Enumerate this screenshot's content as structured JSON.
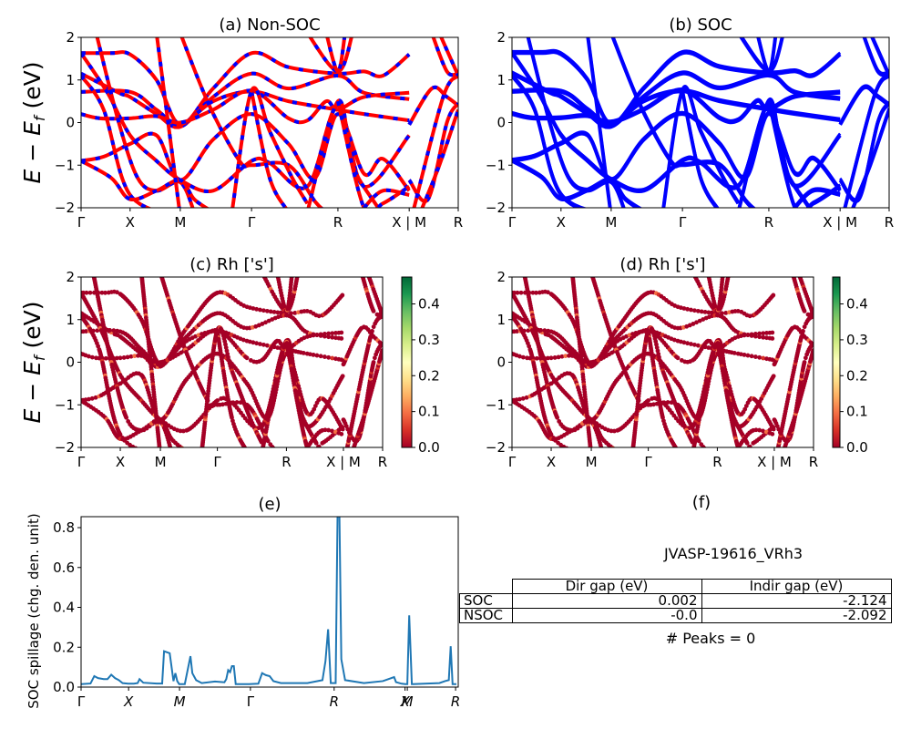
{
  "chart_data": [
    {
      "id": "a",
      "type": "line",
      "title": "(a) Non-SOC",
      "ylabel": "E − E_f (eV)",
      "xlabel": "",
      "ylim": [
        -2,
        2
      ],
      "yticks": [
        "−2",
        "−1",
        "0",
        "1",
        "2"
      ],
      "ytick_values": [
        -2,
        -1,
        0,
        1,
        2
      ],
      "kpath_labels": [
        "Γ",
        "X",
        "M",
        "Γ",
        "R",
        "X | M",
        "R"
      ],
      "kpath_positions": [
        0,
        0.13,
        0.263,
        0.452,
        0.681,
        0.87,
        1.0
      ],
      "style": "red solid with blue dashed overlay",
      "colors": {
        "line": "#ff0000",
        "dash": "#0000ff"
      }
    },
    {
      "id": "b",
      "type": "line",
      "title": "(b) SOC",
      "ylabel": "",
      "ylim": [
        -2,
        2
      ],
      "yticks": [
        "−2",
        "−1",
        "0",
        "1",
        "2"
      ],
      "ytick_values": [
        -2,
        -1,
        0,
        1,
        2
      ],
      "kpath_labels": [
        "Γ",
        "X",
        "M",
        "Γ",
        "R",
        "X | M",
        "R"
      ],
      "kpath_positions": [
        0,
        0.13,
        0.263,
        0.452,
        0.681,
        0.87,
        1.0
      ],
      "colors": {
        "line": "#0000ff"
      }
    },
    {
      "id": "c",
      "type": "scatter",
      "title": "(c)  Rh ['s']",
      "ylabel": "E − E_f (eV)",
      "ylim": [
        -2,
        2
      ],
      "yticks": [
        "−2",
        "−1",
        "0",
        "1",
        "2"
      ],
      "ytick_values": [
        -2,
        -1,
        0,
        1,
        2
      ],
      "kpath_labels": [
        "Γ",
        "X",
        "M",
        "Γ",
        "R",
        "X | M",
        "R"
      ],
      "kpath_positions": [
        0,
        0.13,
        0.263,
        0.452,
        0.681,
        0.87,
        1.0
      ],
      "colorbar": {
        "colormap": "RdYlGn",
        "range": [
          0,
          0.475
        ],
        "ticks": [
          "0.0",
          "0.1",
          "0.2",
          "0.3",
          "0.4"
        ],
        "tick_values": [
          0,
          0.1,
          0.2,
          0.3,
          0.4
        ]
      }
    },
    {
      "id": "d",
      "type": "scatter",
      "title": "(d) Rh ['s']",
      "ylabel": "",
      "ylim": [
        -2,
        2
      ],
      "yticks": [
        "−2",
        "−1",
        "0",
        "1",
        "2"
      ],
      "ytick_values": [
        -2,
        -1,
        0,
        1,
        2
      ],
      "kpath_labels": [
        "Γ",
        "X",
        "M",
        "Γ",
        "R",
        "X | M",
        "R"
      ],
      "kpath_positions": [
        0,
        0.13,
        0.263,
        0.452,
        0.681,
        0.87,
        1.0
      ],
      "colorbar": {
        "colormap": "RdYlGn",
        "range": [
          0,
          0.475
        ],
        "ticks": [
          "0.0",
          "0.1",
          "0.2",
          "0.3",
          "0.4"
        ],
        "tick_values": [
          0,
          0.1,
          0.2,
          0.3,
          0.4
        ]
      }
    },
    {
      "id": "e",
      "type": "line",
      "title": "(e)",
      "ylabel": "SOC spillage (chg. den. unit)",
      "ylim": [
        0,
        0.855
      ],
      "yticks": [
        "0.0",
        "0.2",
        "0.4",
        "0.6",
        "0.8"
      ],
      "ytick_values": [
        0,
        0.2,
        0.4,
        0.6,
        0.8
      ],
      "kpath_labels": [
        "Γ",
        "X",
        "M",
        "Γ",
        "R",
        "X",
        "M",
        "R"
      ],
      "kpath_positions": [
        0,
        0.126,
        0.261,
        0.449,
        0.671,
        0.859,
        0.865,
        0.993
      ],
      "color": "#1f77b4",
      "x": [
        0,
        0.025,
        0.035,
        0.045,
        0.06,
        0.07,
        0.08,
        0.09,
        0.1,
        0.11,
        0.125,
        0.14,
        0.15,
        0.155,
        0.165,
        0.2,
        0.215,
        0.22,
        0.235,
        0.245,
        0.25,
        0.255,
        0.26,
        0.27,
        0.275,
        0.29,
        0.295,
        0.305,
        0.32,
        0.355,
        0.38,
        0.385,
        0.39,
        0.395,
        0.4,
        0.405,
        0.41,
        0.415,
        0.42,
        0.425,
        0.445,
        0.47,
        0.48,
        0.49,
        0.5,
        0.51,
        0.53,
        0.6,
        0.64,
        0.648,
        0.655,
        0.662,
        0.668,
        0.675,
        0.68,
        0.685,
        0.69,
        0.7,
        0.75,
        0.8,
        0.83,
        0.835,
        0.85,
        0.86,
        0.865,
        0.87,
        0.877,
        0.88,
        0.95,
        0.965,
        0.975,
        0.98,
        0.985,
        0.995
      ],
      "values": [
        0.015,
        0.018,
        0.055,
        0.045,
        0.04,
        0.04,
        0.062,
        0.045,
        0.035,
        0.02,
        0.017,
        0.017,
        0.02,
        0.04,
        0.022,
        0.018,
        0.018,
        0.18,
        0.17,
        0.03,
        0.07,
        0.03,
        0.015,
        0.015,
        0.015,
        0.155,
        0.07,
        0.035,
        0.02,
        0.028,
        0.024,
        0.04,
        0.085,
        0.075,
        0.105,
        0.105,
        0.015,
        0.015,
        0.015,
        0.015,
        0.015,
        0.017,
        0.07,
        0.06,
        0.055,
        0.03,
        0.02,
        0.02,
        0.035,
        0.13,
        0.29,
        0.02,
        0.02,
        0.02,
        0.86,
        0.86,
        0.14,
        0.035,
        0.02,
        0.03,
        0.05,
        0.025,
        0.017,
        0.015,
        0.015,
        0.36,
        0.015,
        0.015,
        0.02,
        0.03,
        0.035,
        0.205,
        0.015,
        0.015
      ]
    }
  ],
  "panel_f": {
    "title": "(f)",
    "material": "JVASP-19616_VRh3",
    "table": {
      "headers": [
        "",
        "Dir gap (eV)",
        "Indir gap (eV)"
      ],
      "rows": [
        {
          "label": "SOC",
          "dir_gap": "0.002",
          "indir_gap": "-2.124"
        },
        {
          "label": "NSOC",
          "dir_gap": "-0.0",
          "indir_gap": "-2.092"
        }
      ]
    },
    "peaks_text": "# Peaks = 0"
  },
  "bands": [
    [
      [
        0,
        1.63
      ],
      [
        0.08,
        1.63
      ],
      [
        0.13,
        1.6
      ],
      [
        0.2,
        1.0
      ],
      [
        0.263,
        -0.05
      ],
      [
        0.35,
        0.8
      ],
      [
        0.452,
        1.63
      ],
      [
        0.55,
        1.3
      ],
      [
        0.681,
        1.15
      ],
      [
        0.75,
        1.2
      ],
      [
        0.8,
        1.1
      ],
      [
        0.87,
        1.6
      ]
    ],
    [
      [
        0,
        1.15
      ],
      [
        0.1,
        0.7
      ],
      [
        0.13,
        0.6
      ],
      [
        0.2,
        0.2
      ],
      [
        0.263,
        -0.1
      ],
      [
        0.35,
        0.6
      ],
      [
        0.452,
        1.15
      ],
      [
        0.55,
        0.8
      ],
      [
        0.681,
        1.1
      ],
      [
        0.75,
        0.7
      ],
      [
        0.87,
        0.55
      ]
    ],
    [
      [
        0,
        0.72
      ],
      [
        0.13,
        0.72
      ],
      [
        0.2,
        0.3
      ],
      [
        0.263,
        -0.05
      ],
      [
        0.35,
        0.5
      ],
      [
        0.452,
        0.73
      ],
      [
        0.55,
        0.5
      ],
      [
        0.681,
        0.3
      ],
      [
        0.75,
        0.2
      ],
      [
        0.87,
        0.05
      ]
    ],
    [
      [
        0,
        0.2
      ],
      [
        0.05,
        0.1
      ],
      [
        0.13,
        0.1
      ],
      [
        0.2,
        0.15
      ],
      [
        0.263,
        0.0
      ],
      [
        0.35,
        0.3
      ],
      [
        0.452,
        0.75
      ],
      [
        0.55,
        0.1
      ],
      [
        0.6,
        0.05
      ],
      [
        0.65,
        0.5
      ],
      [
        0.681,
        0.3
      ],
      [
        0.75,
        0.6
      ],
      [
        0.87,
        0.7
      ]
    ],
    [
      [
        0,
        -0.9
      ],
      [
        0.06,
        -0.8
      ],
      [
        0.13,
        -0.5
      ],
      [
        0.2,
        -0.3
      ],
      [
        0.263,
        -1.35
      ],
      [
        0.35,
        -0.4
      ],
      [
        0.452,
        0.2
      ],
      [
        0.55,
        -0.5
      ],
      [
        0.62,
        -1.3
      ],
      [
        0.681,
        0.2
      ],
      [
        0.75,
        -1.2
      ],
      [
        0.8,
        -0.85
      ],
      [
        0.87,
        -1.6
      ]
    ],
    [
      [
        0,
        1.63
      ],
      [
        0.07,
        0.7
      ],
      [
        0.13,
        -0.3
      ],
      [
        0.2,
        -0.9
      ],
      [
        0.263,
        -1.35
      ],
      [
        0.35,
        -1.6
      ],
      [
        0.452,
        -0.9
      ],
      [
        0.5,
        -0.95
      ],
      [
        0.6,
        -1.5
      ],
      [
        0.681,
        0.4
      ],
      [
        0.75,
        -1.5
      ],
      [
        0.87,
        -0.3
      ]
    ],
    [
      [
        0,
        1.1
      ],
      [
        0.06,
        0.3
      ],
      [
        0.13,
        -1.7
      ],
      [
        0.263,
        -2.2
      ]
    ],
    [
      [
        0.04,
        2.1
      ],
      [
        0.1,
        0.0
      ],
      [
        0.15,
        -1.3
      ],
      [
        0.2,
        -1.6
      ],
      [
        0.263,
        -1.4
      ],
      [
        0.3,
        -2.1
      ]
    ],
    [
      [
        0,
        -0.9
      ],
      [
        0.08,
        -1.3
      ],
      [
        0.13,
        -1.8
      ],
      [
        0.2,
        -1.6
      ],
      [
        0.263,
        -1.35
      ],
      [
        0.3,
        -1.8
      ],
      [
        0.35,
        -2.1
      ]
    ],
    [
      [
        0.2,
        2.1
      ],
      [
        0.263,
        -2.2
      ]
    ],
    [
      [
        0.263,
        2.1
      ],
      [
        0.34,
        0.4
      ],
      [
        0.42,
        -0.9
      ],
      [
        0.452,
        -1.0
      ],
      [
        0.55,
        -1.0
      ],
      [
        0.62,
        -1.85
      ],
      [
        0.65,
        -2.1
      ]
    ],
    [
      [
        0.452,
        0.73
      ],
      [
        0.5,
        -1.3
      ],
      [
        0.55,
        -2.1
      ]
    ],
    [
      [
        0.4,
        -2.1
      ],
      [
        0.452,
        0.75
      ],
      [
        0.5,
        -0.2
      ],
      [
        0.56,
        -1.3
      ],
      [
        0.6,
        -1.9
      ]
    ],
    [
      [
        0.6,
        2.1
      ],
      [
        0.681,
        1.2
      ],
      [
        0.72,
        2.1
      ]
    ],
    [
      [
        0.65,
        2.1
      ],
      [
        0.681,
        1.2
      ],
      [
        0.7,
        2.1
      ]
    ],
    [
      [
        0.6,
        -2.1
      ],
      [
        0.681,
        0.5
      ],
      [
        0.72,
        -1.0
      ],
      [
        0.78,
        -1.9
      ],
      [
        0.8,
        -2.1
      ]
    ],
    [
      [
        0.681,
        0.5
      ],
      [
        0.75,
        -2.0
      ],
      [
        0.8,
        -1.9
      ],
      [
        0.87,
        -1.5
      ]
    ],
    [
      [
        0.75,
        -2.0
      ],
      [
        0.8,
        -1.6
      ],
      [
        0.87,
        -1.7
      ]
    ],
    [
      [
        0.87,
        -0.05
      ],
      [
        0.93,
        0.8
      ],
      [
        0.97,
        0.6
      ],
      [
        1.0,
        0.4
      ]
    ],
    [
      [
        0.87,
        -1.35
      ],
      [
        0.92,
        -1.8
      ],
      [
        0.97,
        0.0
      ],
      [
        1.0,
        0.45
      ]
    ],
    [
      [
        0.88,
        -2.1
      ],
      [
        0.96,
        0.6
      ],
      [
        1.0,
        1.1
      ]
    ],
    [
      [
        0.9,
        -2.1
      ],
      [
        0.95,
        -1.0
      ],
      [
        1.0,
        0.3
      ]
    ],
    [
      [
        0.93,
        2.1
      ],
      [
        0.97,
        1.2
      ],
      [
        1.0,
        1.15
      ]
    ],
    [
      [
        0.95,
        2.1
      ],
      [
        1.0,
        1.1
      ]
    ]
  ]
}
